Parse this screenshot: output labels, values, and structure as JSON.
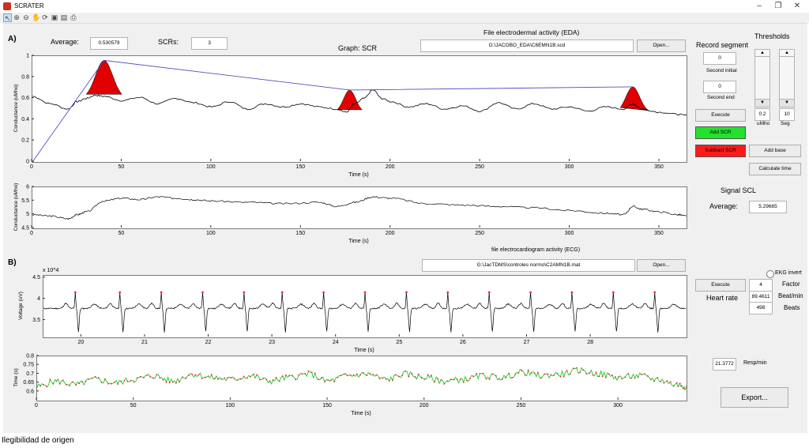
{
  "window": {
    "title": "SCRATER",
    "minimize": "–",
    "restore": "❐",
    "close": "✕"
  },
  "toolbar": {
    "icons": [
      "pointer-icon",
      "zoom-in-icon",
      "zoom-out-icon",
      "pan-icon",
      "rotate-icon",
      "open-icon",
      "save-icon",
      "print-icon"
    ]
  },
  "eda": {
    "section_label": "A)",
    "average_label": "Average:",
    "average_value": "0.530579",
    "scrs_label": "SCRs:",
    "scrs_value": "3",
    "graph_label": "Graph: SCR",
    "file_title": "File electrodermal activity (EDA)",
    "file_path": "G:\\JACOBO_EDA\\C6EMN1B.scd",
    "open_label": "Open...",
    "record_segment_label": "Record segment",
    "second_initial_value": "0",
    "second_initial_label": "Second initial",
    "second_end_value": "0",
    "second_end_label": "Second end",
    "execute_label": "Execute",
    "add_scr_label": "Add SCR",
    "subtract_scr_label": "Subtract SCR",
    "thresholds_label": "Thresholds",
    "threshold_umho_value": "0.2",
    "threshold_umho_label": "uMho",
    "threshold_seg_value": "10",
    "threshold_seg_label": "Seg",
    "add_base_label": "Add base",
    "calc_time_label": "Calculate time",
    "signal_scl_label": "Signal SCL",
    "scl_average_label": "Average:",
    "scl_average_value": "5.29665"
  },
  "ecg": {
    "section_label": "B)",
    "file_title": "file electrocardiogram activity (ECG)",
    "file_path": "G:\\JacTDMS\\controles normo\\C2AMN1B.mat",
    "open_label": "Open...",
    "ekg_invert_label": "EKG invert",
    "execute_label": "Execute",
    "factor_value": "4",
    "factor_label": "Factor",
    "heart_rate_label": "Heart rate",
    "beat_min_value": "89.4611",
    "beat_min_label": "Beat/min",
    "beats_value": "498",
    "beats_label": "Beats",
    "resp_value": "21.3772",
    "resp_label": "Resp/min",
    "export_label": "Export..."
  },
  "footer": {
    "text": "Ilegibilidad de origen"
  },
  "chart_data": [
    {
      "type": "line",
      "title": "",
      "xlabel": "Time (s)",
      "ylabel": "Conductance (uMho)",
      "xlim": [
        0,
        365
      ],
      "ylim": [
        0,
        1
      ],
      "xticks": [
        "0",
        "50",
        "100",
        "150",
        "200",
        "250",
        "300",
        "350"
      ],
      "yticks": [
        "0",
        "0.2",
        "0.4",
        "0.6",
        "0.8",
        "1"
      ],
      "series": [
        {
          "values_x": [
            0,
            10,
            20,
            25,
            30,
            35,
            40,
            50,
            60,
            70,
            80,
            90,
            100,
            110,
            120,
            130,
            140,
            150,
            160,
            170,
            175,
            180,
            185,
            190,
            195,
            200,
            210,
            220,
            230,
            240,
            250,
            260,
            270,
            280,
            290,
            300,
            310,
            320,
            330,
            335,
            340,
            350,
            360,
            365
          ],
          "values_y": [
            0.62,
            0.55,
            0.5,
            0.57,
            0.6,
            0.63,
            0.62,
            0.58,
            0.61,
            0.55,
            0.6,
            0.56,
            0.52,
            0.57,
            0.5,
            0.55,
            0.52,
            0.55,
            0.52,
            0.5,
            0.47,
            0.55,
            0.6,
            0.68,
            0.6,
            0.57,
            0.52,
            0.55,
            0.5,
            0.53,
            0.48,
            0.56,
            0.5,
            0.55,
            0.5,
            0.52,
            0.48,
            0.52,
            0.5,
            0.55,
            0.5,
            0.47,
            0.45,
            0.44
          ]
        },
        {
          "values_x": [
            0,
            40,
            177,
            335
          ],
          "values_y": [
            0,
            0.96,
            0.68,
            0.71
          ]
        }
      ],
      "scr_peaks": [
        {
          "start": 30,
          "peak": 40,
          "end": 50,
          "base": 0.6,
          "height": 0.96
        },
        {
          "start": 170,
          "peak": 177,
          "end": 184,
          "base": 0.47,
          "height": 0.68
        },
        {
          "start": 328,
          "peak": 335,
          "end": 344,
          "base": 0.47,
          "height": 0.71
        }
      ],
      "scr_color": "#e00000",
      "baseline_color": "#5050c0"
    },
    {
      "type": "line",
      "xlabel": "Time (s)",
      "ylabel": "Conductance (uMho)",
      "xlim": [
        0,
        365
      ],
      "ylim": [
        4.5,
        6
      ],
      "xticks": [
        "0",
        "50",
        "100",
        "150",
        "200",
        "250",
        "300",
        "350"
      ],
      "yticks": [
        "4.5",
        "5",
        "5.5",
        "6"
      ],
      "series": [
        {
          "values_x": [
            0,
            10,
            20,
            25,
            30,
            40,
            50,
            60,
            70,
            80,
            90,
            100,
            120,
            140,
            160,
            170,
            180,
            190,
            200,
            220,
            240,
            260,
            280,
            300,
            320,
            330,
            335,
            340,
            350,
            360,
            365
          ],
          "values_y": [
            5.0,
            4.95,
            4.85,
            5.0,
            5.1,
            5.5,
            5.6,
            5.55,
            5.65,
            5.6,
            5.55,
            5.5,
            5.45,
            5.4,
            5.45,
            5.3,
            5.45,
            5.65,
            5.6,
            5.4,
            5.35,
            5.3,
            5.25,
            5.15,
            5.05,
            5.0,
            5.3,
            5.2,
            5.1,
            5.0,
            4.95
          ]
        }
      ]
    },
    {
      "type": "line",
      "xlabel": "Time (s)",
      "ylabel": "Voltage (uV)",
      "ylabel_exponent": "x 10^4",
      "xlim": [
        19.4,
        29.5
      ],
      "ylim": [
        3.1,
        4.55
      ],
      "xticks": [
        "20",
        "21",
        "22",
        "23",
        "24",
        "25",
        "26",
        "27",
        "28"
      ],
      "yticks": [
        "3.5",
        "4",
        "4.5"
      ],
      "beats_x": [
        19.9,
        20.6,
        21.25,
        21.9,
        22.55,
        23.15,
        23.8,
        24.45,
        25.1,
        25.75,
        26.4,
        27.05,
        27.7,
        28.35,
        29.0
      ],
      "series": []
    },
    {
      "type": "line",
      "xlabel": "Time (s)",
      "ylabel": "Time (s)",
      "xlim": [
        0,
        335
      ],
      "ylim": [
        0.55,
        0.8
      ],
      "xticks": [
        "0",
        "50",
        "100",
        "150",
        "200",
        "250",
        "300"
      ],
      "yticks": [
        "0.6",
        "0.65",
        "0.7",
        "0.75",
        "0.8"
      ],
      "line_color": "#22c822",
      "marker_color": "#d03030",
      "series": [
        {
          "values_x": [
            0,
            10,
            20,
            30,
            40,
            50,
            60,
            70,
            80,
            90,
            100,
            110,
            120,
            130,
            140,
            150,
            160,
            170,
            180,
            190,
            200,
            210,
            220,
            230,
            240,
            250,
            260,
            270,
            280,
            290,
            300,
            310,
            320,
            330,
            335
          ],
          "values_y": [
            0.63,
            0.66,
            0.64,
            0.67,
            0.65,
            0.67,
            0.69,
            0.66,
            0.7,
            0.68,
            0.67,
            0.69,
            0.66,
            0.68,
            0.7,
            0.66,
            0.69,
            0.7,
            0.67,
            0.7,
            0.68,
            0.66,
            0.67,
            0.69,
            0.68,
            0.71,
            0.69,
            0.7,
            0.72,
            0.7,
            0.68,
            0.69,
            0.67,
            0.64,
            0.63
          ]
        }
      ]
    }
  ]
}
